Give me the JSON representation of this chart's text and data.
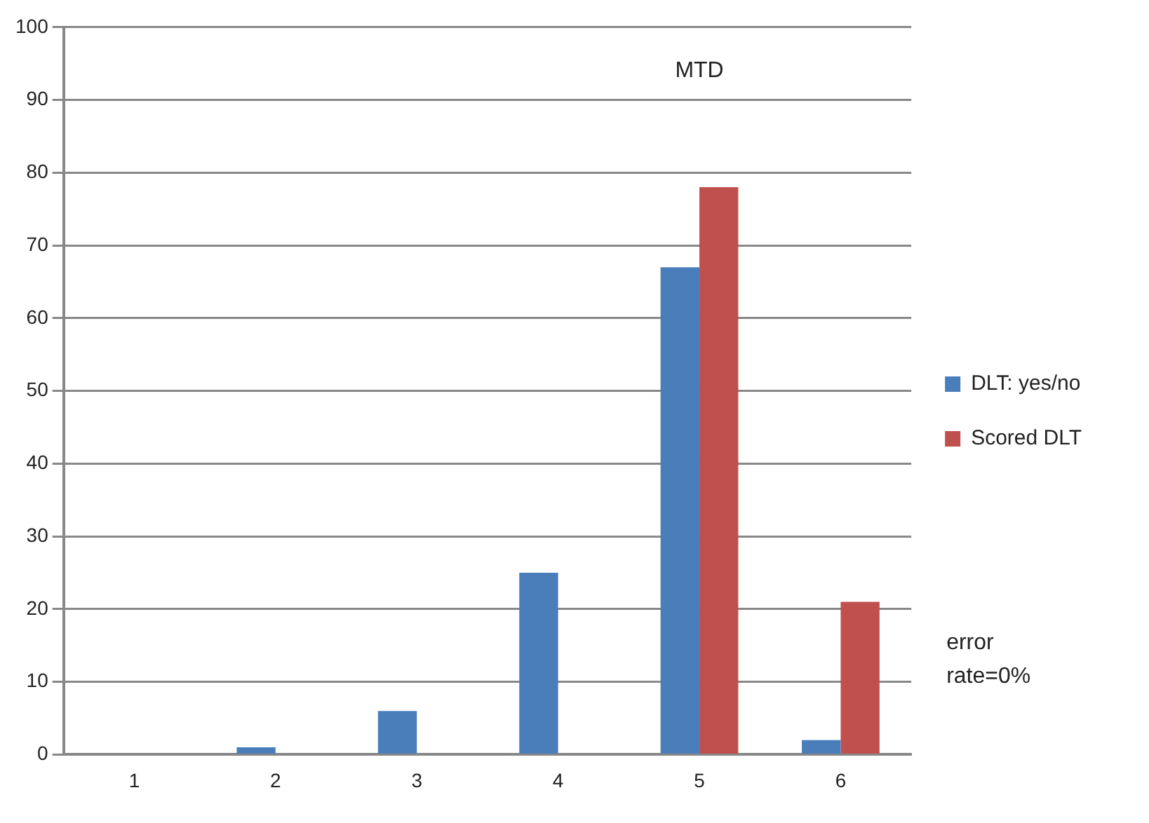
{
  "chart_data": {
    "type": "bar",
    "categories": [
      "1",
      "2",
      "3",
      "4",
      "5",
      "6"
    ],
    "series": [
      {
        "name": "DLT: yes/no",
        "color": "#4a7ebb",
        "values": [
          0,
          1,
          6,
          25,
          67,
          2
        ]
      },
      {
        "name": "Scored DLT",
        "color": "#c0504d",
        "values": [
          0,
          0,
          0,
          0,
          78,
          21
        ]
      }
    ],
    "ylim": [
      0,
      100
    ],
    "yticks": [
      0,
      10,
      20,
      30,
      40,
      50,
      60,
      70,
      80,
      90,
      100
    ],
    "grid": "y",
    "legend": "right",
    "annotations": [
      "MTD",
      "error rate=0%"
    ]
  }
}
